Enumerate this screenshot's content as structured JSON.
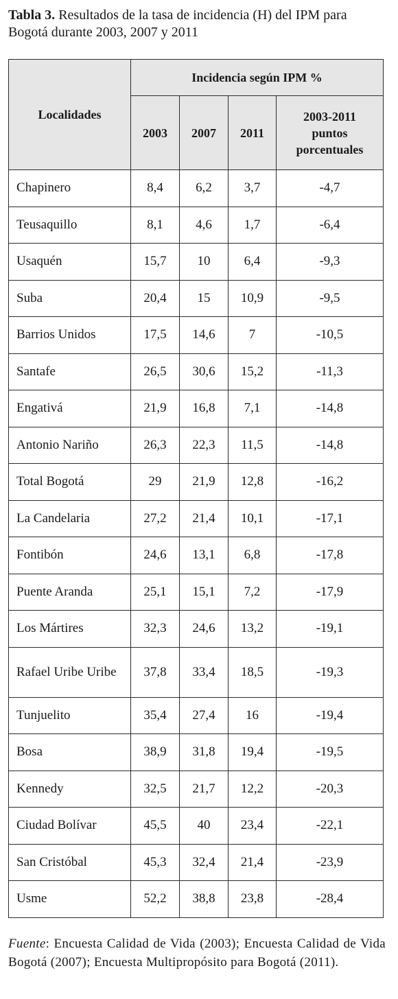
{
  "caption": {
    "label": "Tabla 3.",
    "text": "Resultados de la tasa de incidencia (H) del IPM para Bogotá durante 2003, 2007 y 2011"
  },
  "table": {
    "header_localidades": "Localidades",
    "header_group": "Incidencia según IPM %",
    "header_years": [
      "2003",
      "2007",
      "2011"
    ],
    "header_change": "2003-2011 puntos porcentuales",
    "rows": [
      {
        "name": "Chapinero",
        "y2003": "8,4",
        "y2007": "6,2",
        "y2011": "3,7",
        "change": "-4,7"
      },
      {
        "name": "Teusaquillo",
        "y2003": "8,1",
        "y2007": "4,6",
        "y2011": "1,7",
        "change": "-6,4"
      },
      {
        "name": "Usaquén",
        "y2003": "15,7",
        "y2007": "10",
        "y2011": "6,4",
        "change": "-9,3"
      },
      {
        "name": "Suba",
        "y2003": "20,4",
        "y2007": "15",
        "y2011": "10,9",
        "change": "-9,5"
      },
      {
        "name": "Barrios Unidos",
        "y2003": "17,5",
        "y2007": "14,6",
        "y2011": "7",
        "change": "-10,5"
      },
      {
        "name": "Santafe",
        "y2003": "26,5",
        "y2007": "30,6",
        "y2011": "15,2",
        "change": "-11,3"
      },
      {
        "name": "Engativá",
        "y2003": "21,9",
        "y2007": "16,8",
        "y2011": "7,1",
        "change": "-14,8"
      },
      {
        "name": "Antonio Nariño",
        "y2003": "26,3",
        "y2007": "22,3",
        "y2011": "11,5",
        "change": "-14,8"
      },
      {
        "name": "Total Bogotá",
        "y2003": "29",
        "y2007": "21,9",
        "y2011": "12,8",
        "change": "-16,2"
      },
      {
        "name": "La Candelaria",
        "y2003": "27,2",
        "y2007": "21,4",
        "y2011": "10,1",
        "change": "-17,1"
      },
      {
        "name": "Fontibón",
        "y2003": "24,6",
        "y2007": "13,1",
        "y2011": "6,8",
        "change": "-17,8"
      },
      {
        "name": "Puente Aranda",
        "y2003": "25,1",
        "y2007": "15,1",
        "y2011": "7,2",
        "change": "-17,9"
      },
      {
        "name": "Los Mártires",
        "y2003": "32,3",
        "y2007": "24,6",
        "y2011": "13,2",
        "change": "-19,1"
      },
      {
        "name": "Rafael Uribe Uribe",
        "y2003": "37,8",
        "y2007": "33,4",
        "y2011": "18,5",
        "change": "-19,3"
      },
      {
        "name": "Tunjuelito",
        "y2003": "35,4",
        "y2007": "27,4",
        "y2011": "16",
        "change": "-19,4"
      },
      {
        "name": "Bosa",
        "y2003": "38,9",
        "y2007": "31,8",
        "y2011": "19,4",
        "change": "-19,5"
      },
      {
        "name": "Kennedy",
        "y2003": "32,5",
        "y2007": "21,7",
        "y2011": "12,2",
        "change": "-20,3"
      },
      {
        "name": "Ciudad Bolívar",
        "y2003": "45,5",
        "y2007": "40",
        "y2011": "23,4",
        "change": "-22,1"
      },
      {
        "name": "San Cristóbal",
        "y2003": "45,3",
        "y2007": "32,4",
        "y2011": "21,4",
        "change": "-23,9"
      },
      {
        "name": "Usme",
        "y2003": "52,2",
        "y2007": "38,8",
        "y2011": "23,8",
        "change": "-28,4"
      }
    ]
  },
  "footnote": {
    "label": "Fuente",
    "text": ": Encuesta Calidad de Vida (2003); Encuesta Calidad de Vida Bogotá (2007); Encuesta Multipropósito para Bogotá (2011)."
  }
}
